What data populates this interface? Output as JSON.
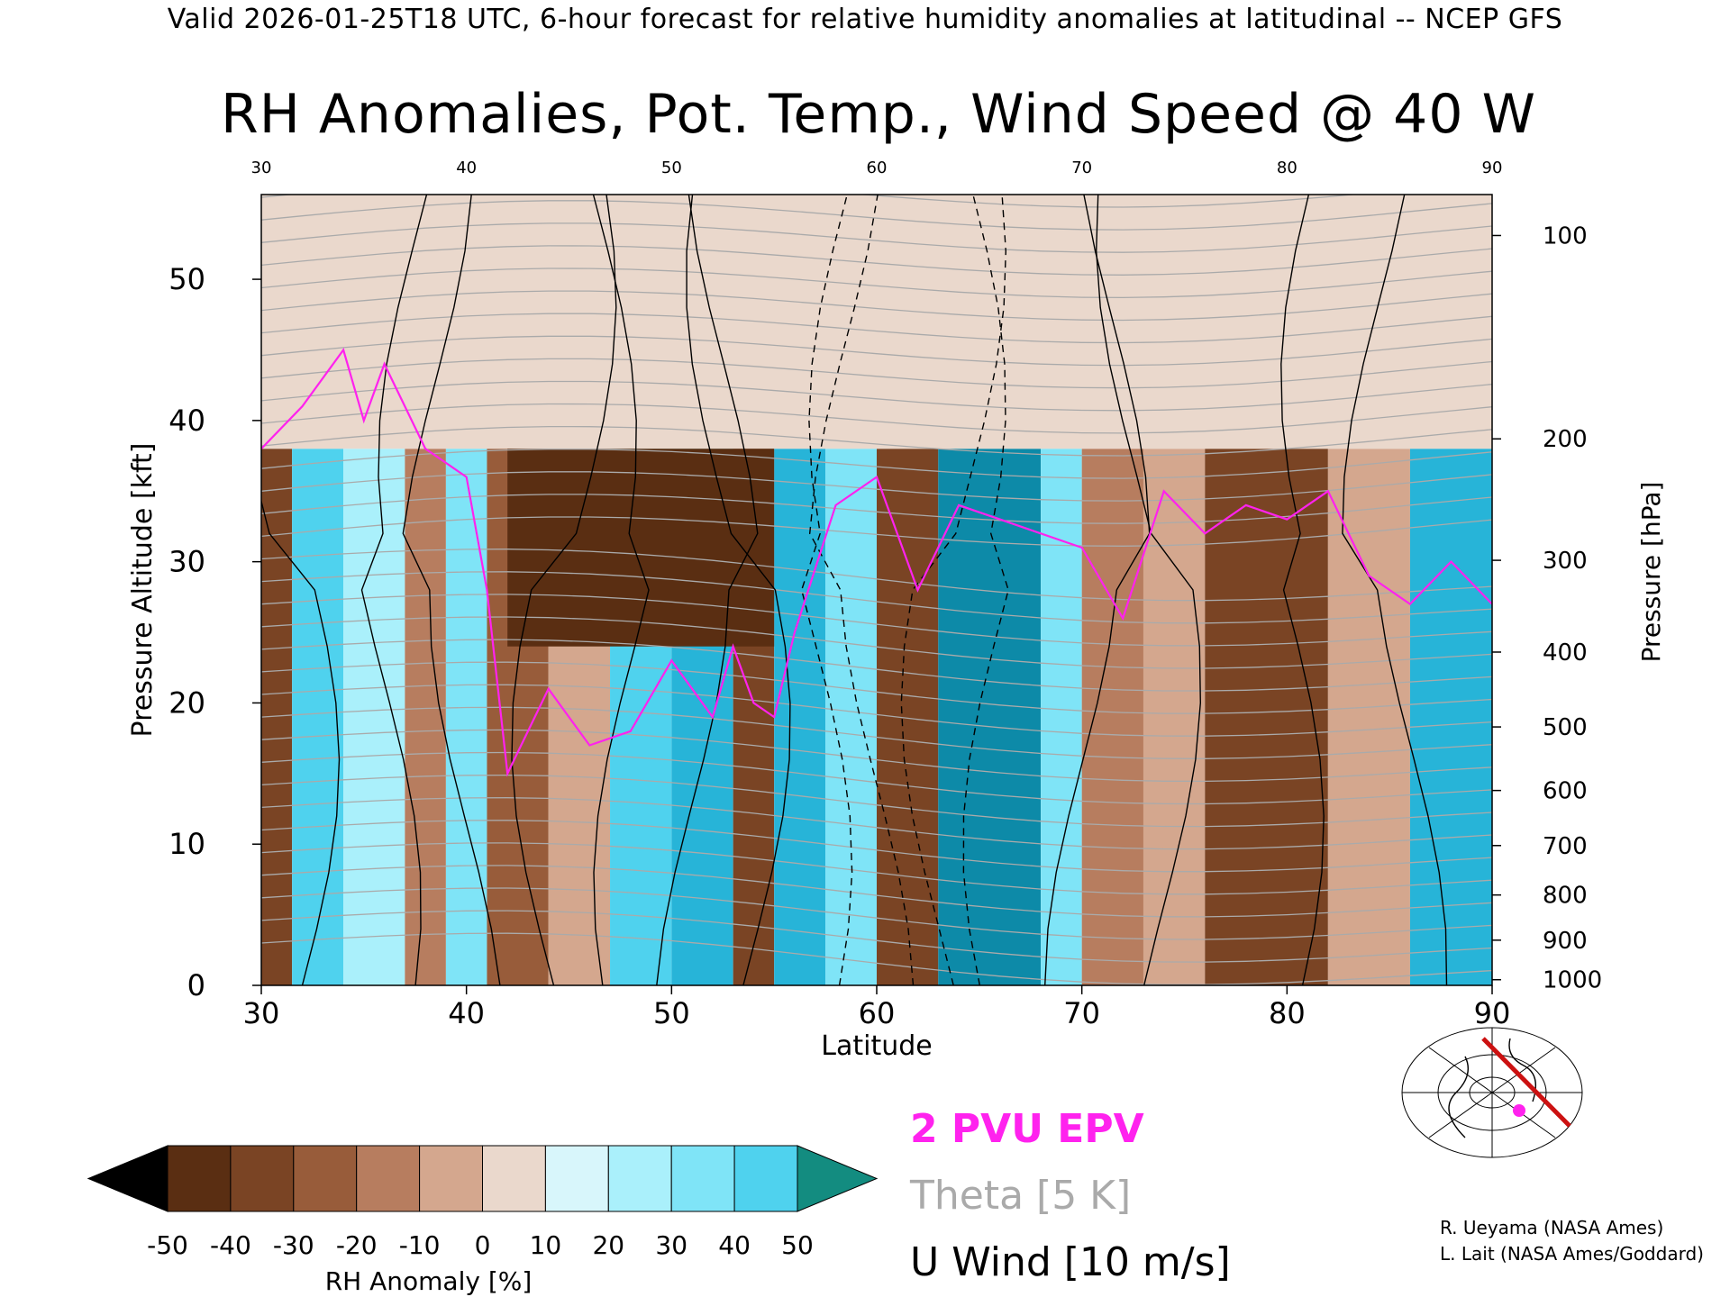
{
  "header": {
    "line": "Valid 2026-01-25T18 UTC, 6-hour forecast for relative humidity anomalies at latitudinal -- NCEP GFS"
  },
  "chart_data": {
    "type": "heatmap",
    "title": "RH Anomalies, Pot. Temp., Wind Speed @ 40 W",
    "xlabel": "Latitude",
    "ylabel": "Pressure Altitude [kft]",
    "y2label": "Pressure [hPa]",
    "xlim": [
      30,
      90
    ],
    "ylim": [
      0,
      56
    ],
    "x_ticks": [
      30,
      40,
      50,
      60,
      70,
      80,
      90
    ],
    "y_ticks": [
      0,
      10,
      20,
      30,
      40,
      50
    ],
    "pressure_ticks": [
      {
        "label": "100",
        "kft": 53.1
      },
      {
        "label": "200",
        "kft": 38.7
      },
      {
        "label": "300",
        "kft": 30.1
      },
      {
        "label": "400",
        "kft": 23.6
      },
      {
        "label": "500",
        "kft": 18.3
      },
      {
        "label": "600",
        "kft": 13.8
      },
      {
        "label": "700",
        "kft": 9.9
      },
      {
        "label": "800",
        "kft": 6.4
      },
      {
        "label": "900",
        "kft": 3.2
      },
      {
        "label": "1000",
        "kft": 0.4
      }
    ],
    "colorbar": {
      "label": "RH Anomaly [%]",
      "ticks": [
        "-50",
        "-40",
        "-30",
        "-20",
        "-10",
        "0",
        "10",
        "20",
        "30",
        "40",
        "50"
      ],
      "colors": [
        "#3a1c08",
        "#5a2e12",
        "#7a4424",
        "#985c3a",
        "#b77d5f",
        "#d4a78e",
        "#ead8cc",
        "#d8f6fb",
        "#aaf0fb",
        "#7fe4f7",
        "#4fd2ee",
        "#27b4d8",
        "#0d8aa8"
      ],
      "under_color": "#000000",
      "over_color": "#138c80"
    },
    "rh_bands": [
      {
        "x0": 30,
        "x1": 31.5,
        "color": "#7a4424"
      },
      {
        "x0": 31.5,
        "x1": 34,
        "color": "#4fd2ee"
      },
      {
        "x0": 34,
        "x1": 37,
        "color": "#aaf0fb"
      },
      {
        "x0": 37,
        "x1": 39,
        "color": "#b77d5f"
      },
      {
        "x0": 39,
        "x1": 41,
        "color": "#7fe4f7"
      },
      {
        "x0": 41,
        "x1": 44,
        "color": "#985c3a"
      },
      {
        "x0": 44,
        "x1": 47,
        "color": "#d4a78e"
      },
      {
        "x0": 47,
        "x1": 50,
        "color": "#4fd2ee"
      },
      {
        "x0": 50,
        "x1": 53,
        "color": "#27b4d8"
      },
      {
        "x0": 53,
        "x1": 55,
        "color": "#7a4424"
      },
      {
        "x0": 55,
        "x1": 57.5,
        "color": "#27b4d8"
      },
      {
        "x0": 57.5,
        "x1": 60,
        "color": "#7fe4f7"
      },
      {
        "x0": 60,
        "x1": 63,
        "color": "#7a4424"
      },
      {
        "x0": 63,
        "x1": 68,
        "color": "#0d8aa8"
      },
      {
        "x0": 68,
        "x1": 70,
        "color": "#7fe4f7"
      },
      {
        "x0": 70,
        "x1": 73,
        "color": "#b77d5f"
      },
      {
        "x0": 73,
        "x1": 76,
        "color": "#d4a78e"
      },
      {
        "x0": 76,
        "x1": 82,
        "color": "#7a4424"
      },
      {
        "x0": 82,
        "x1": 86,
        "color": "#d4a78e"
      },
      {
        "x0": 86,
        "x1": 90,
        "color": "#27b4d8"
      }
    ],
    "upper_band": {
      "y0": 38,
      "y1": 56,
      "color": "#ead8cc"
    },
    "dry_core": {
      "x0": 42,
      "x1": 55,
      "y0": 24,
      "y1": 38,
      "color": "#5a2e12"
    },
    "pv_line": {
      "name": "2 PVU EPV",
      "color": "#ff22ee",
      "points": [
        [
          30,
          38
        ],
        [
          32,
          41
        ],
        [
          34,
          45
        ],
        [
          35,
          40
        ],
        [
          36,
          44
        ],
        [
          38,
          38
        ],
        [
          40,
          36
        ],
        [
          41,
          28
        ],
        [
          42,
          15
        ],
        [
          44,
          21
        ],
        [
          46,
          17
        ],
        [
          48,
          18
        ],
        [
          50,
          23
        ],
        [
          52,
          19
        ],
        [
          53,
          24
        ],
        [
          54,
          20
        ],
        [
          55,
          19
        ],
        [
          56,
          25
        ],
        [
          58,
          34
        ],
        [
          60,
          36
        ],
        [
          62,
          28
        ],
        [
          64,
          34
        ],
        [
          66,
          33
        ],
        [
          68,
          32
        ],
        [
          70,
          31
        ],
        [
          72,
          26
        ],
        [
          74,
          35
        ],
        [
          76,
          32
        ],
        [
          78,
          34
        ],
        [
          80,
          33
        ],
        [
          82,
          35
        ],
        [
          84,
          29
        ],
        [
          86,
          27
        ],
        [
          88,
          30
        ],
        [
          90,
          27
        ]
      ]
    },
    "theta_legend": "Theta [5 K]",
    "wind_legend": "U Wind [10 m/s]"
  },
  "credits": {
    "line1": "R. Ueyama (NASA Ames)",
    "line2": "L. Lait (NASA Ames/Goddard)"
  },
  "colors": {
    "pv": "#ff22ee",
    "theta": "#aaaaaa",
    "wind": "#000000",
    "track": "#cc1111"
  },
  "map_inset": {
    "icon": "globe-map-icon"
  }
}
